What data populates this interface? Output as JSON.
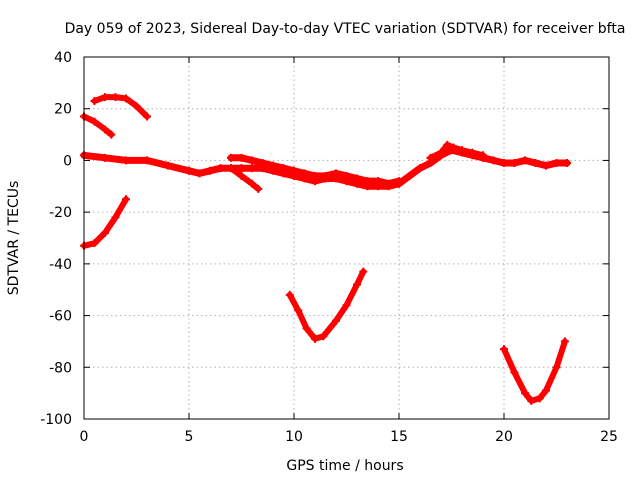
{
  "chart_data": {
    "type": "scatter",
    "title": "Day 059 of 2023, Sidereal Day-to-day VTEC variation (SDTVAR) for receiver bfta",
    "xlabel": "GPS time / hours",
    "ylabel": "SDTVAR / TECUs",
    "xlim": [
      0,
      25
    ],
    "ylim": [
      -100,
      40
    ],
    "xticks": [
      0,
      5,
      10,
      15,
      20,
      25
    ],
    "yticks": [
      -100,
      -80,
      -60,
      -40,
      -20,
      0,
      20,
      40
    ],
    "grid": true,
    "color": "#ff0000",
    "series": [
      {
        "name": "main-track",
        "x": [
          0,
          1,
          2,
          3,
          4,
          5,
          5.5,
          6,
          6.5,
          7,
          7.5,
          8,
          8.5,
          9,
          9.5,
          10,
          10.5,
          11,
          11.5,
          12,
          12.5,
          13,
          13.5,
          14,
          14.5,
          15,
          15.5,
          16,
          16.5,
          17,
          17.5,
          18,
          18.5,
          19,
          19.5,
          20,
          20.5,
          21,
          21.5,
          22,
          22.5,
          23
        ],
        "y": [
          2,
          1,
          0,
          0,
          -2,
          -4,
          -5,
          -4,
          -3,
          -3,
          -3,
          -3,
          -3,
          -4,
          -5,
          -6,
          -7,
          -8,
          -7,
          -7,
          -8,
          -9,
          -10,
          -10,
          -10,
          -9,
          -6,
          -3,
          -1,
          2,
          4,
          3,
          2,
          1,
          0,
          -1,
          -1,
          0,
          -1,
          -2,
          -1,
          -1
        ]
      },
      {
        "name": "track-upper-band",
        "x": [
          7,
          7.5,
          8,
          8.5,
          9,
          9.5,
          10,
          10.5,
          11,
          11.5,
          12,
          12.5,
          13,
          13.5,
          14,
          14.5,
          15
        ],
        "y": [
          1,
          1,
          0,
          -1,
          -2,
          -3,
          -4,
          -5,
          -6,
          -6,
          -5,
          -6,
          -7,
          -8,
          -8,
          -9,
          -8
        ]
      },
      {
        "name": "track-dip-7h",
        "x": [
          7,
          7.5,
          8,
          8.3
        ],
        "y": [
          -3,
          -6,
          -9,
          -11
        ]
      },
      {
        "name": "track-17h-bump",
        "x": [
          16.5,
          17,
          17.3,
          17.6,
          18,
          18.5,
          19
        ],
        "y": [
          1,
          3,
          6,
          5,
          4,
          3,
          2
        ]
      },
      {
        "name": "track-early-decline",
        "x": [
          0,
          0.5,
          1,
          1.3
        ],
        "y": [
          17,
          15,
          12,
          10
        ]
      },
      {
        "name": "track-early-arc",
        "x": [
          0.5,
          1,
          1.5,
          2,
          2.5,
          3
        ],
        "y": [
          23,
          24.5,
          24.5,
          24,
          21,
          17
        ]
      },
      {
        "name": "track-early-rise",
        "x": [
          0,
          0.5,
          1,
          1.5,
          2
        ],
        "y": [
          -33,
          -32,
          -28,
          -22,
          -15
        ]
      },
      {
        "name": "track-10h-dip",
        "x": [
          9.8,
          10.2,
          10.6,
          11,
          11.4,
          12,
          12.5,
          13,
          13.3
        ],
        "y": [
          -52,
          -58,
          -65,
          -69,
          -68,
          -62,
          -56,
          -48,
          -43
        ]
      },
      {
        "name": "track-21h-dip",
        "x": [
          20,
          20.5,
          21,
          21.3,
          21.7,
          22,
          22.5,
          22.9
        ],
        "y": [
          -73,
          -82,
          -90,
          -93,
          -92,
          -89,
          -80,
          -70
        ]
      }
    ]
  }
}
